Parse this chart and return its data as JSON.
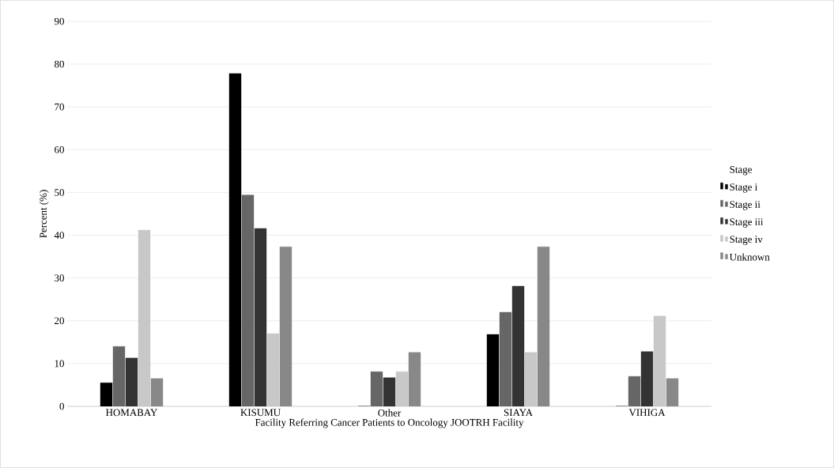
{
  "chart_data": {
    "type": "bar",
    "xlabel": "Facility Referring  Cancer Patients to Oncology  JOOTRH Facility",
    "ylabel": "Percent (%)",
    "legend_title": "Stage",
    "categories": [
      "HOMABAY",
      "KISUMU",
      "Other",
      "SIAYA",
      "VIHIGA"
    ],
    "series": [
      {
        "name": "Stage i",
        "color": "#000000",
        "values": [
          5.5,
          77.8,
          0,
          16.8,
          0
        ]
      },
      {
        "name": "Stage ii",
        "color": "#666666",
        "values": [
          14,
          49.4,
          8.1,
          22,
          7
        ]
      },
      {
        "name": "Stage iii",
        "color": "#333333",
        "values": [
          11.3,
          41.6,
          6.7,
          28.1,
          12.8
        ]
      },
      {
        "name": "Stage iv",
        "color": "#c8c8c8",
        "values": [
          41.2,
          17,
          8.1,
          12.6,
          21.1
        ]
      },
      {
        "name": "Unknown",
        "color": "#888888",
        "values": [
          6.5,
          37.3,
          12.6,
          37.3,
          6.5
        ]
      }
    ],
    "ylim": [
      0,
      90
    ],
    "yticks": [
      0,
      10,
      20,
      30,
      40,
      50,
      60,
      70,
      80,
      90
    ],
    "grid": "y",
    "legend": "right"
  }
}
